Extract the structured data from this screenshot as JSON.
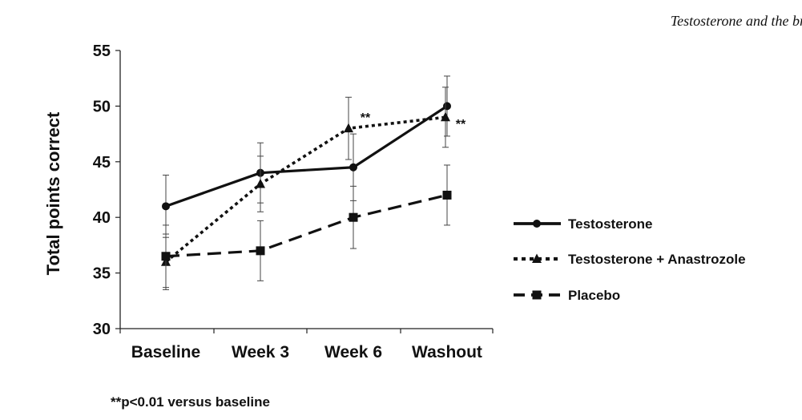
{
  "header": {
    "running_title": "Testosterone and the br"
  },
  "footnote": "**p<0.01 versus baseline",
  "chart_data": {
    "type": "line",
    "title": "",
    "xlabel": "",
    "ylabel": "Total points correct",
    "categories": [
      "Baseline",
      "Week 3",
      "Week 6",
      "Washout"
    ],
    "ylim": [
      30,
      55
    ],
    "yticks": [
      30,
      35,
      40,
      45,
      50,
      55
    ],
    "series": [
      {
        "name": "Testosterone",
        "style": "solid",
        "marker": "circle",
        "values": [
          41,
          44,
          44.5,
          50
        ],
        "errors": [
          2.8,
          2.7,
          3.0,
          2.7
        ]
      },
      {
        "name": "Testosterone + Anastrozole",
        "style": "dotted",
        "marker": "triangle",
        "values": [
          36,
          43,
          48,
          49
        ],
        "errors": [
          2.5,
          2.5,
          2.8,
          2.7
        ]
      },
      {
        "name": "Placebo",
        "style": "dashed",
        "marker": "square",
        "values": [
          36.5,
          37,
          40,
          42
        ],
        "errors": [
          2.8,
          2.7,
          2.8,
          2.7
        ]
      }
    ],
    "annotations": [
      {
        "text": "**",
        "category": "Week 6",
        "value": 48.5
      },
      {
        "text": "**",
        "category": "Washout",
        "value": 49
      }
    ],
    "legend_position": "right"
  }
}
